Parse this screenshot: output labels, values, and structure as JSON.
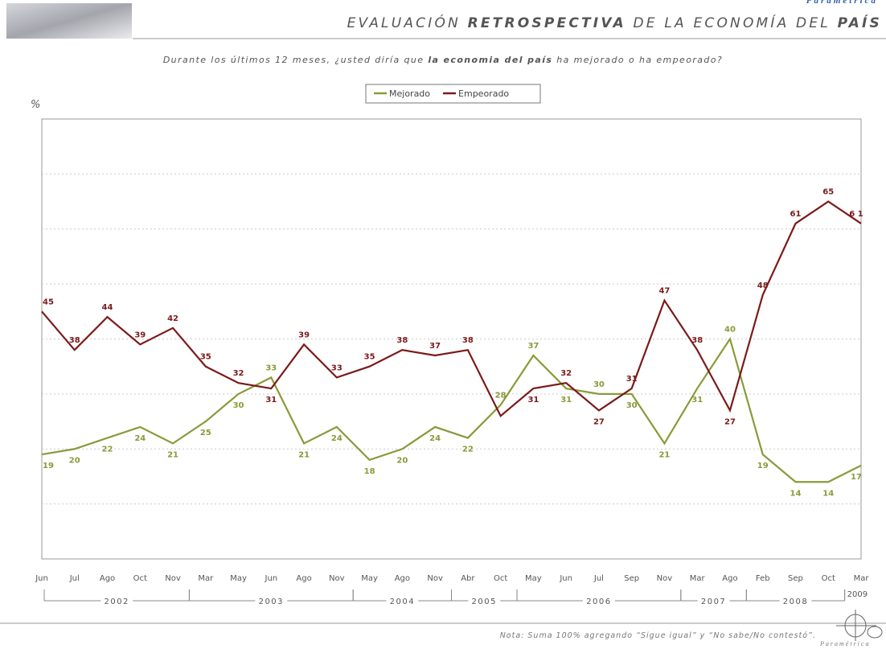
{
  "brand": "Paramétrica",
  "chart_data": {
    "type": "line",
    "title": [
      {
        "text": "EVALUACIÓN ",
        "bold": false
      },
      {
        "text": "RETROSPECTIVA",
        "bold": true
      },
      {
        "text": " DE LA ECONOMÍA DEL ",
        "bold": false
      },
      {
        "text": "PAÍS",
        "bold": true
      }
    ],
    "subtitle": [
      {
        "text": "Durante los últimos 12 meses, ¿usted diría que ",
        "bold": false
      },
      {
        "text": "la economia del país",
        "bold": true
      },
      {
        "text": " ha mejorado o ha empeorado?",
        "bold": false
      }
    ],
    "y_label": "%",
    "note": "Nota: Suma 100% agregando “Sigue igual” y “No sabe/No contestó”.",
    "categories": [
      "Jun",
      "Jul",
      "Ago",
      "Oct",
      "Nov",
      "Mar",
      "May",
      "Jun",
      "Ago",
      "Nov",
      "May",
      "Ago",
      "Nov",
      "Abr",
      "Oct",
      "May",
      "Jun",
      "Jul",
      "Sep",
      "Nov",
      "Mar",
      "Ago",
      "Feb",
      "Sep",
      "Oct",
      "Mar"
    ],
    "year_groups": [
      {
        "label": "2002",
        "start": 0,
        "end": 4
      },
      {
        "label": "2003",
        "start": 5,
        "end": 9
      },
      {
        "label": "2004",
        "start": 10,
        "end": 12
      },
      {
        "label": "2005",
        "start": 13,
        "end": 14
      },
      {
        "label": "2006",
        "start": 15,
        "end": 19
      },
      {
        "label": "2007",
        "start": 20,
        "end": 21
      },
      {
        "label": "2008",
        "start": 22,
        "end": 24
      },
      {
        "label": "2009",
        "start": 25,
        "end": 25
      }
    ],
    "series": [
      {
        "name": "Mejorado",
        "color": "#8a9a3a",
        "values": [
          19,
          20,
          22,
          24,
          21,
          25,
          30,
          33,
          21,
          24,
          18,
          20,
          24,
          22,
          28,
          37,
          31,
          30,
          30,
          21,
          31,
          40,
          19,
          14,
          14,
          17
        ]
      },
      {
        "name": "Empeorado",
        "color": "#7b1a1a",
        "values": [
          45,
          38,
          44,
          39,
          42,
          35,
          32,
          31,
          39,
          33,
          35,
          38,
          37,
          38,
          26,
          31,
          32,
          27,
          31,
          47,
          38,
          27,
          48,
          61,
          65,
          61
        ],
        "value_labels": [
          "45",
          "38",
          "44",
          "39",
          "42",
          "35",
          "32",
          "31",
          "39",
          "33",
          "35",
          "38",
          "37",
          "38",
          null,
          "31",
          "32",
          "27",
          "31",
          "47",
          "38",
          "27",
          "48",
          "61",
          "65",
          "6 1"
        ]
      }
    ],
    "ylim": [
      0,
      80
    ],
    "yticks": [
      10,
      20,
      30,
      40,
      50,
      60,
      70
    ],
    "show_ytick_labels": false,
    "grid": true,
    "legend": "top"
  }
}
